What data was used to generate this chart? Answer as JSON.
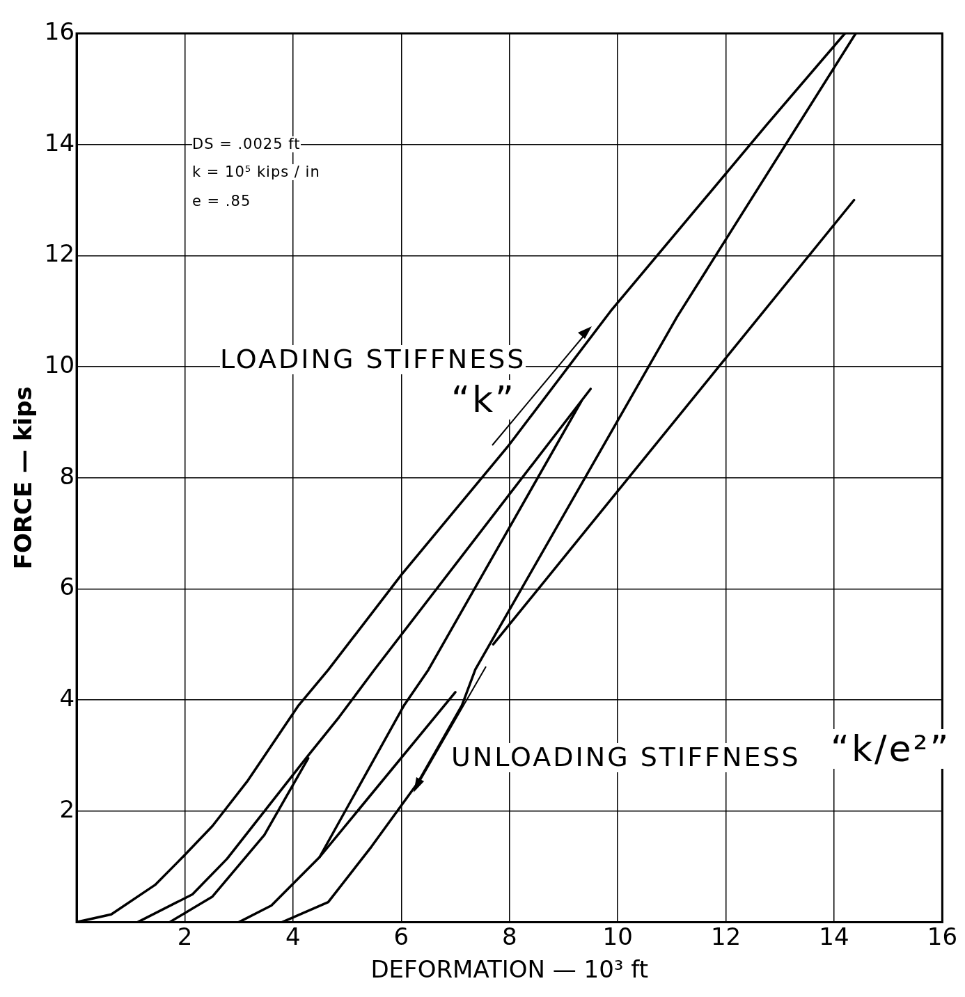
{
  "chart_data": {
    "type": "line",
    "xlabel": "DEFORMATION — 10³ ft",
    "ylabel": "FORCE — kips",
    "xlim": [
      0,
      16
    ],
    "xticks": [
      2,
      4,
      6,
      8,
      10,
      12,
      14,
      16
    ],
    "ylim": [
      0,
      16
    ],
    "yticks": [
      2,
      4,
      6,
      8,
      10,
      12,
      14,
      16
    ],
    "grid": true,
    "legend": false,
    "marker": "none",
    "line_style": "solid",
    "annotations": [
      "DS = .0025 ft",
      "k = 10⁵ kips / in",
      "e = .85",
      "LOADING STIFFNESS",
      "“k”",
      "UNLOADING STIFFNESS",
      "“k/e²”"
    ],
    "series": [
      {
        "color": "#000000",
        "x": [
          0,
          0.64,
          1.45,
          1.99,
          2.51,
          3.15,
          4.1,
          4.65,
          6.0,
          8.0,
          9.87,
          12.76,
          14.2
        ],
        "values": [
          0,
          0.14,
          0.67,
          1.2,
          1.73,
          2.53,
          3.9,
          4.54,
          6.25,
          8.6,
          11.0,
          14.36,
          16
        ]
      },
      {
        "color": "#000000",
        "x": [
          14.4,
          11.1,
          7.37,
          7.12,
          6.3,
          5.45,
          4.65,
          3.8
        ],
        "values": [
          16,
          10.9,
          4.55,
          3.9,
          2.5,
          1.36,
          0.36,
          0
        ]
      },
      {
        "color": "#000000",
        "x": [
          14.37,
          7.7,
          7.35,
          7.0,
          4.49
        ],
        "values": [
          13.0,
          5.0,
          null,
          4.14,
          1.17
        ]
      },
      {
        "color": "#000000",
        "x": [
          3.0,
          3.6,
          4.49,
          6.05,
          6.5,
          9.33
        ],
        "values": [
          0,
          0.3,
          1.17,
          3.9,
          4.54,
          9.38
        ]
      },
      {
        "color": "#000000",
        "x": [
          1.13,
          2.14,
          2.78,
          4.28,
          4.85,
          5.5,
          9.5
        ],
        "values": [
          0,
          0.5,
          1.14,
          3.0,
          3.69,
          4.54,
          9.6
        ]
      },
      {
        "color": "#000000",
        "x": [
          1.72,
          2.51,
          3.47,
          4.28
        ],
        "values": [
          0,
          0.46,
          1.57,
          2.95
        ]
      }
    ]
  }
}
